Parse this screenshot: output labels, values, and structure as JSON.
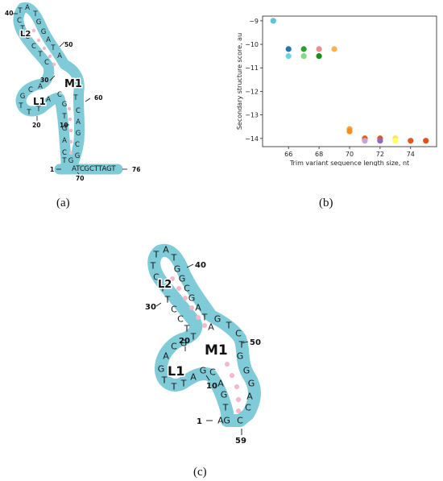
{
  "captions": {
    "a": "(a)",
    "b": "(b)",
    "c": "(c)"
  },
  "panel_a": {
    "loop_labels": [
      "L2",
      "M1",
      "L1"
    ],
    "position_numbers": [
      "40",
      "50",
      "30",
      "60",
      "20",
      "10",
      "1",
      "70",
      "76"
    ],
    "tail_left": "ATC",
    "tail_right": "GCTTAGT"
  },
  "panel_c": {
    "loop_labels": [
      "L2",
      "M1",
      "L1"
    ],
    "position_numbers": [
      "40",
      "30",
      "50",
      "20",
      "10",
      "1",
      "59"
    ],
    "start_seq": "AG",
    "end_seq": "C"
  },
  "chart_data": {
    "type": "scatter",
    "xlabel": "Trim variant sequence length size, nt",
    "ylabel": "Secondary structure score, au",
    "xlim": [
      64.3,
      75.7
    ],
    "ylim": [
      -14.35,
      -8.8
    ],
    "xticks": [
      66,
      68,
      70,
      72,
      74
    ],
    "yticks": [
      -9,
      -10,
      -11,
      -12,
      -13,
      -14
    ],
    "grid": false,
    "points": [
      {
        "x": 65,
        "y": -9.0,
        "color": "#5fc3d3"
      },
      {
        "x": 66,
        "y": -10.2,
        "color": "#1f77b4"
      },
      {
        "x": 66,
        "y": -10.5,
        "color": "#6fd3e3"
      },
      {
        "x": 67,
        "y": -10.2,
        "color": "#2ca02c"
      },
      {
        "x": 67,
        "y": -10.5,
        "color": "#7fdc7f"
      },
      {
        "x": 68,
        "y": -10.2,
        "color": "#f28b8b"
      },
      {
        "x": 68,
        "y": -10.5,
        "color": "#1a8f1a"
      },
      {
        "x": 69,
        "y": -10.2,
        "color": "#ffb347"
      },
      {
        "x": 70,
        "y": -13.6,
        "color": "#ffa040"
      },
      {
        "x": 70,
        "y": -13.7,
        "color": "#ff8c1a"
      },
      {
        "x": 71,
        "y": -14.0,
        "color": "#e0601a"
      },
      {
        "x": 71,
        "y": -14.1,
        "color": "#c9a0dc"
      },
      {
        "x": 72,
        "y": -14.0,
        "color": "#d45a2a"
      },
      {
        "x": 72,
        "y": -14.1,
        "color": "#9467bd"
      },
      {
        "x": 73,
        "y": -14.0,
        "color": "#ffe066"
      },
      {
        "x": 73,
        "y": -14.1,
        "color": "#ffff66"
      },
      {
        "x": 74,
        "y": -14.1,
        "color": "#e05a1a"
      },
      {
        "x": 75,
        "y": -14.1,
        "color": "#e0501a"
      }
    ]
  }
}
